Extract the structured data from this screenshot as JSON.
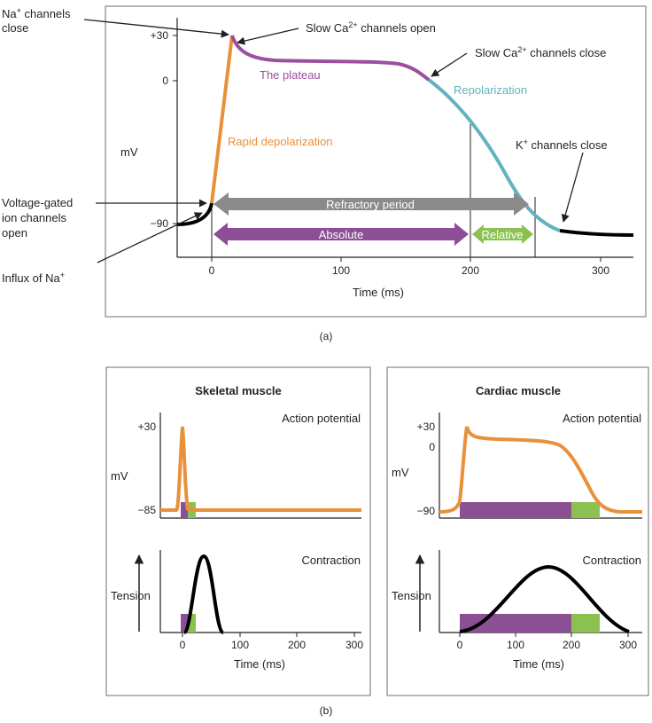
{
  "colors": {
    "depolarization": "#e8913a",
    "plateau": "#9b4f9e",
    "repolarization": "#62b3bd",
    "refractory": "#8a8a8a",
    "absolute": "#8c4f96",
    "relative": "#8cc152",
    "axis": "#231f20",
    "panel_border": "#6d6e71"
  },
  "panel_a": {
    "caption": "(a)",
    "y_ticks": [
      "+30",
      "0",
      "−90"
    ],
    "y_label": "mV",
    "x_ticks": [
      "0",
      "100",
      "200",
      "300"
    ],
    "x_label": "Time (ms)",
    "labels": {
      "na_close_1": "Na",
      "na_close_sup": "+",
      "na_close_2": " channels",
      "na_close_3": "close",
      "ca_open_1": "Slow Ca",
      "ca_open_sup": "2+",
      "ca_open_2": " channels open",
      "ca_close_1": "Slow Ca",
      "ca_close_sup": "2+",
      "ca_close_2": " channels close",
      "plateau": "The plateau",
      "repolarization": "Repolarization",
      "rapid_depol": "Rapid depolarization",
      "k_close_1": "K",
      "k_close_sup": "+",
      "k_close_2": " channels close",
      "vg_1": "Voltage-gated",
      "vg_2": "ion channels",
      "vg_3": "open",
      "influx_1": "Influx of Na",
      "influx_sup": "+",
      "refractory": "Refractory period",
      "absolute": "Absolute",
      "relative": "Relative"
    }
  },
  "panel_b": {
    "caption": "(b)",
    "skeletal": {
      "title": "Skeletal muscle",
      "ap_label": "Action potential",
      "ap_y_ticks": [
        "+30",
        "−85"
      ],
      "ap_y_label": "mV",
      "contraction_label": "Contraction",
      "tension_label": "Tension",
      "x_ticks": [
        "0",
        "100",
        "200",
        "300"
      ],
      "x_label": "Time (ms)"
    },
    "cardiac": {
      "title": "Cardiac muscle",
      "ap_label": "Action potential",
      "ap_y_ticks": [
        "+30",
        "0",
        "−90"
      ],
      "ap_y_label": "mV",
      "contraction_label": "Contraction",
      "tension_label": "Tension",
      "x_ticks": [
        "0",
        "100",
        "200",
        "300"
      ],
      "x_label": "Time (ms)"
    }
  }
}
